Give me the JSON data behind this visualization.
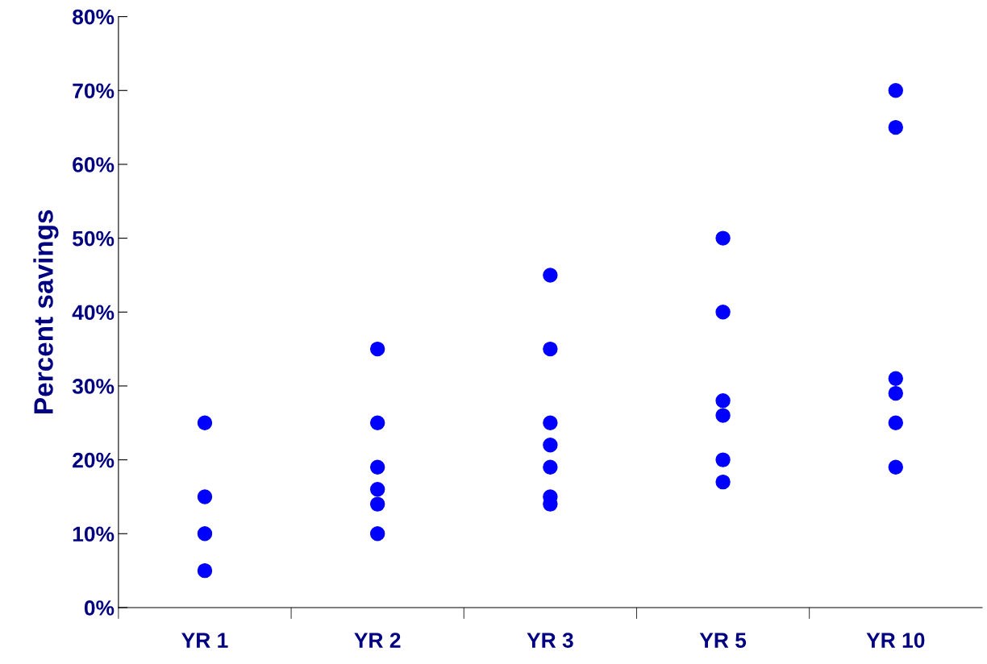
{
  "chart_data": {
    "type": "scatter",
    "ylabel": "Percent savings",
    "categories": [
      "YR 1",
      "YR 2",
      "YR 3",
      "YR 5",
      "YR 10"
    ],
    "series": [
      {
        "color": "#0000ff",
        "x": [
          "YR 1",
          "YR 1",
          "YR 1",
          "YR 1"
        ],
        "values": [
          25,
          15,
          10,
          5
        ]
      },
      {
        "color": "#0000ff",
        "x": [
          "YR 2",
          "YR 2",
          "YR 2",
          "YR 2",
          "YR 2",
          "YR 2"
        ],
        "values": [
          35,
          25,
          19,
          16,
          14,
          10
        ]
      },
      {
        "color": "#0000ff",
        "x": [
          "YR 3",
          "YR 3",
          "YR 3",
          "YR 3",
          "YR 3",
          "YR 3",
          "YR 3"
        ],
        "values": [
          45,
          35,
          25,
          22,
          19,
          15,
          14
        ]
      },
      {
        "color": "#0000ff",
        "x": [
          "YR 5",
          "YR 5",
          "YR 5",
          "YR 5",
          "YR 5",
          "YR 5"
        ],
        "values": [
          50,
          40,
          28,
          26,
          20,
          17
        ]
      },
      {
        "color": "#0000ff",
        "x": [
          "YR 10",
          "YR 10",
          "YR 10",
          "YR 10",
          "YR 10",
          "YR 10"
        ],
        "values": [
          70,
          65,
          31,
          29,
          25,
          19
        ]
      }
    ],
    "ylim": [
      0,
      80
    ],
    "yticks": [
      {
        "value": 0,
        "label": "0%"
      },
      {
        "value": 10,
        "label": "10%"
      },
      {
        "value": 20,
        "label": "20%"
      },
      {
        "value": 30,
        "label": "30%"
      },
      {
        "value": 40,
        "label": "40%"
      },
      {
        "value": 50,
        "label": "50%"
      },
      {
        "value": 60,
        "label": "60%"
      },
      {
        "value": 70,
        "label": "70%"
      },
      {
        "value": 80,
        "label": "80%"
      }
    ],
    "grid": false,
    "marker": "circle"
  }
}
